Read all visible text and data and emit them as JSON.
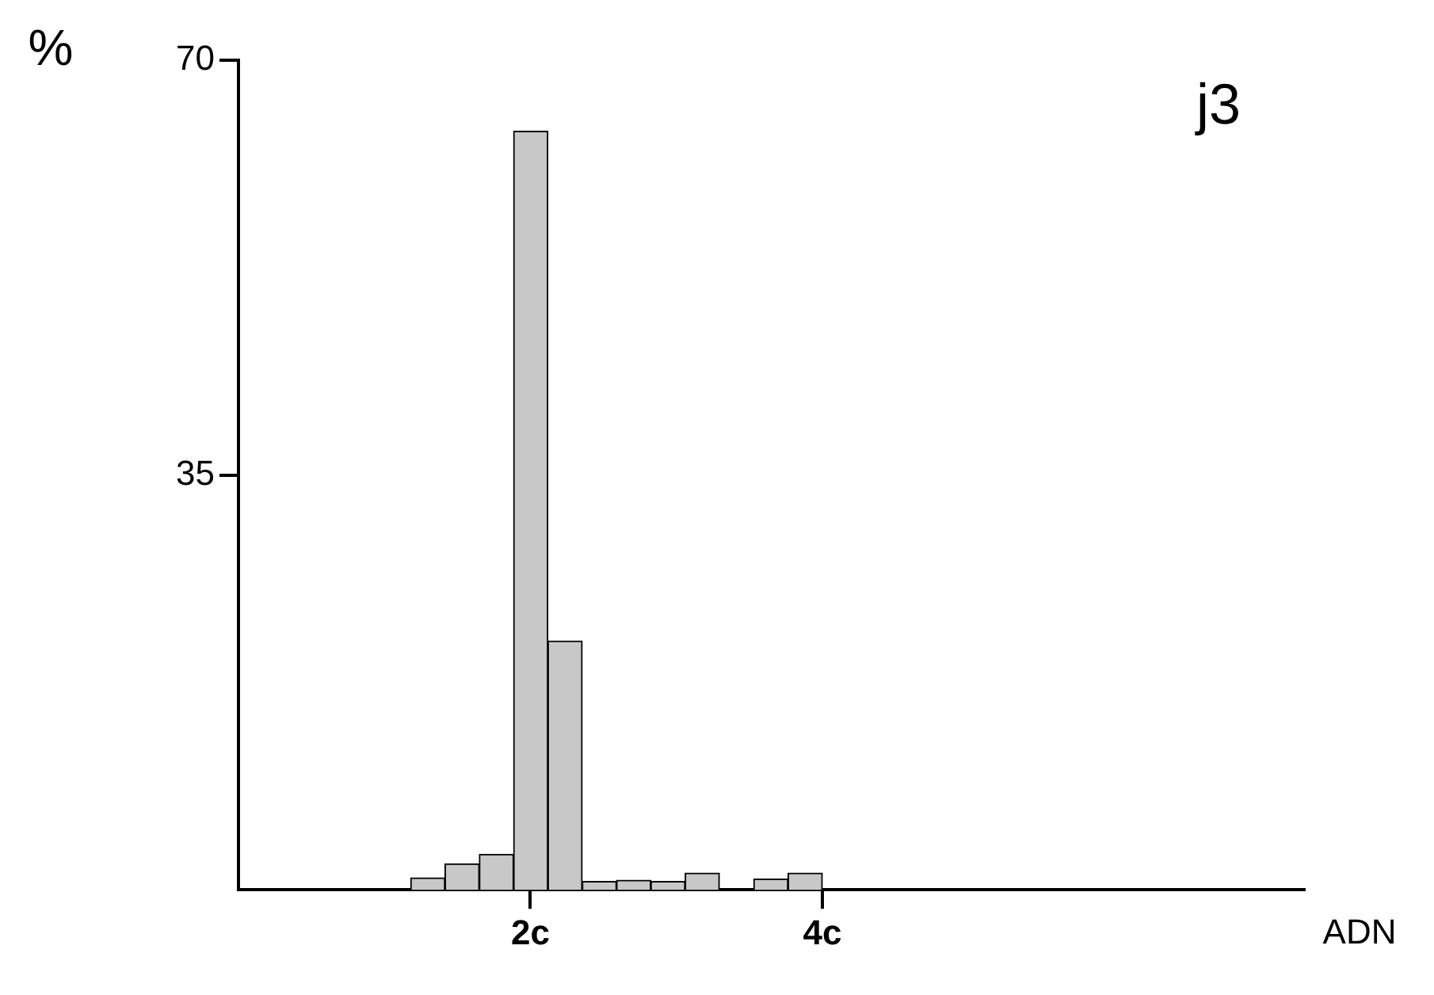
{
  "chart_data": {
    "type": "histogram",
    "bins": [
      1.18,
      1.415,
      1.65,
      1.885,
      2.12,
      2.355,
      2.59,
      2.825,
      3.06,
      3.295,
      3.53,
      3.765,
      4.0
    ],
    "values": [
      1.0,
      2.2,
      3.0,
      64,
      21,
      0.7,
      0.8,
      0.7,
      1.4,
      0,
      0.9,
      1.4
    ],
    "color": "#c8c8c8",
    "xlim": [
      0,
      7.3
    ],
    "xticks": [
      {
        "value": 2,
        "label": "2c"
      },
      {
        "value": 4,
        "label": "4c"
      }
    ],
    "ylim": [
      0,
      70
    ],
    "yticks": [
      35,
      70
    ],
    "xlabel": "ADN",
    "ylabel": "%",
    "annotations": [
      "j3"
    ],
    "grid": false,
    "legend": false
  }
}
